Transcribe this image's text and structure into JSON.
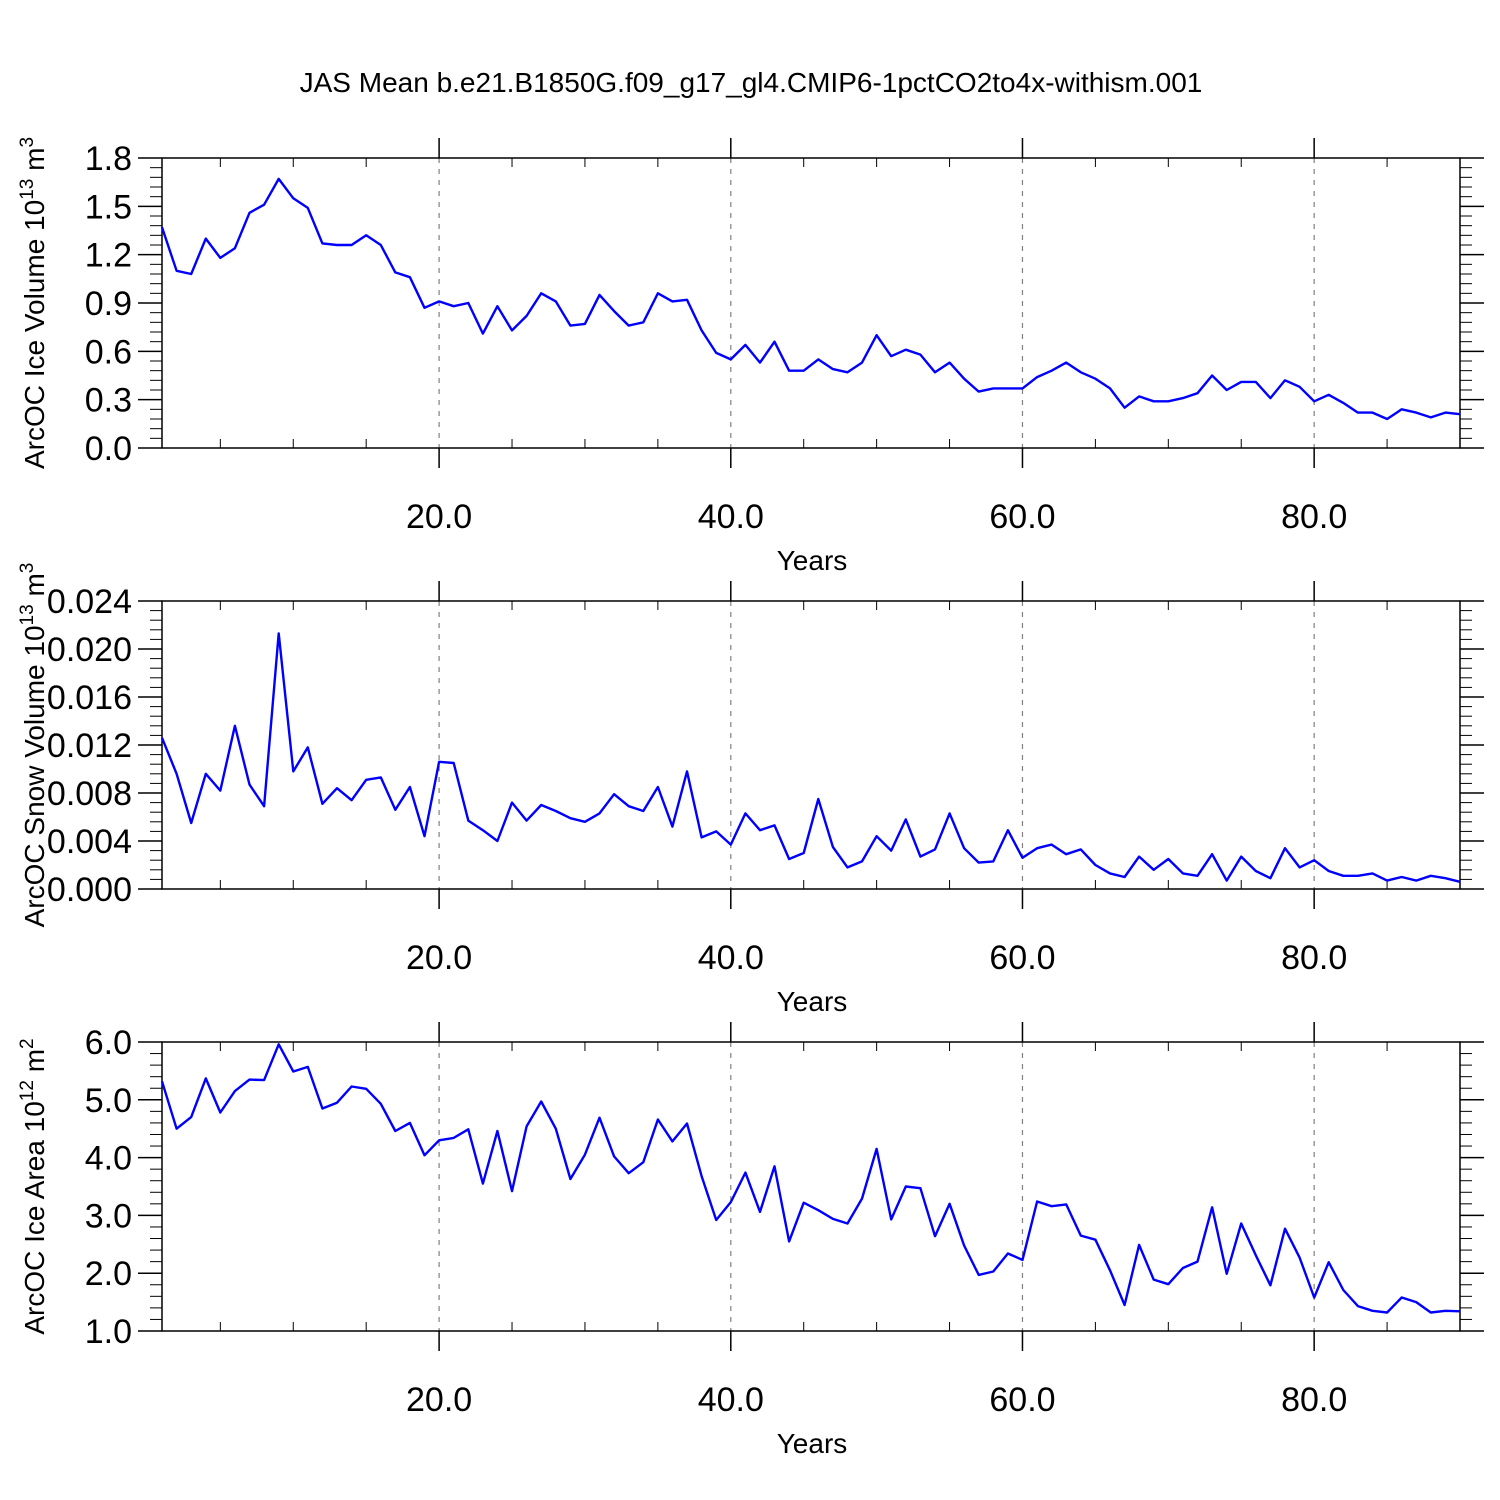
{
  "figure": {
    "title": "JAS Mean b.e21.B1850G.f09_g17_gl4.CMIP6-1pctCO2to4x-withism.001"
  },
  "colors": {
    "line": "#0000ff",
    "axes": "#000000",
    "grid": "#808080"
  },
  "chart_data": [
    {
      "type": "line",
      "xlabel": "Years",
      "ylabel_text": "ArcOC Ice Volume 10",
      "ylabel_exp": "13",
      "ylabel_unit": " m",
      "ylabel_unit_exp": "3",
      "xlim": [
        1,
        90
      ],
      "ylim": [
        0.0,
        1.8
      ],
      "x_ticks": [
        20,
        40,
        60,
        80
      ],
      "x_tick_labels": [
        "20.0",
        "40.0",
        "60.0",
        "80.0"
      ],
      "y_ticks": [
        0.0,
        0.3,
        0.6,
        0.9,
        1.2,
        1.5,
        1.8
      ],
      "y_tick_labels": [
        "0.0",
        "0.3",
        "0.6",
        "0.9",
        "1.2",
        "1.5",
        "1.8"
      ],
      "grid": "x-dashed",
      "x": [
        1,
        2,
        3,
        4,
        5,
        6,
        7,
        8,
        9,
        10,
        11,
        12,
        13,
        14,
        15,
        16,
        17,
        18,
        19,
        20,
        21,
        22,
        23,
        24,
        25,
        26,
        27,
        28,
        29,
        30,
        31,
        32,
        33,
        34,
        35,
        36,
        37,
        38,
        39,
        40,
        41,
        42,
        43,
        44,
        45,
        46,
        47,
        48,
        49,
        50,
        51,
        52,
        53,
        54,
        55,
        56,
        57,
        58,
        59,
        60,
        61,
        62,
        63,
        64,
        65,
        66,
        67,
        68,
        69,
        70,
        71,
        72,
        73,
        74,
        75,
        76,
        77,
        78,
        79,
        80,
        81,
        82,
        83,
        84,
        85,
        86,
        87,
        88,
        89,
        90
      ],
      "values": [
        1.37,
        1.1,
        1.08,
        1.3,
        1.18,
        1.24,
        1.46,
        1.51,
        1.67,
        1.55,
        1.49,
        1.27,
        1.26,
        1.26,
        1.32,
        1.26,
        1.09,
        1.06,
        0.87,
        0.91,
        0.88,
        0.9,
        0.71,
        0.88,
        0.73,
        0.82,
        0.96,
        0.91,
        0.76,
        0.77,
        0.95,
        0.85,
        0.76,
        0.78,
        0.96,
        0.91,
        0.92,
        0.73,
        0.59,
        0.55,
        0.64,
        0.53,
        0.66,
        0.48,
        0.48,
        0.55,
        0.49,
        0.47,
        0.53,
        0.7,
        0.57,
        0.61,
        0.58,
        0.47,
        0.53,
        0.43,
        0.35,
        0.37,
        0.37,
        0.37,
        0.44,
        0.48,
        0.53,
        0.47,
        0.43,
        0.37,
        0.25,
        0.32,
        0.29,
        0.29,
        0.31,
        0.34,
        0.45,
        0.36,
        0.41,
        0.41,
        0.31,
        0.42,
        0.38,
        0.29,
        0.33,
        0.28,
        0.22,
        0.22,
        0.18,
        0.24,
        0.22,
        0.19,
        0.22,
        0.21
      ]
    },
    {
      "type": "line",
      "xlabel": "Years",
      "ylabel_text": "ArcOC Snow Volume 10",
      "ylabel_exp": "13",
      "ylabel_unit": " m",
      "ylabel_unit_exp": "3",
      "xlim": [
        1,
        90
      ],
      "ylim": [
        0.0,
        0.024
      ],
      "x_ticks": [
        20,
        40,
        60,
        80
      ],
      "x_tick_labels": [
        "20.0",
        "40.0",
        "60.0",
        "80.0"
      ],
      "y_ticks": [
        0.0,
        0.004,
        0.008,
        0.012,
        0.016,
        0.02,
        0.024
      ],
      "y_tick_labels": [
        "0.000",
        "0.004",
        "0.008",
        "0.012",
        "0.016",
        "0.020",
        "0.024"
      ],
      "grid": "x-dashed",
      "x": [
        1,
        2,
        3,
        4,
        5,
        6,
        7,
        8,
        9,
        10,
        11,
        12,
        13,
        14,
        15,
        16,
        17,
        18,
        19,
        20,
        21,
        22,
        23,
        24,
        25,
        26,
        27,
        28,
        29,
        30,
        31,
        32,
        33,
        34,
        35,
        36,
        37,
        38,
        39,
        40,
        41,
        42,
        43,
        44,
        45,
        46,
        47,
        48,
        49,
        50,
        51,
        52,
        53,
        54,
        55,
        56,
        57,
        58,
        59,
        60,
        61,
        62,
        63,
        64,
        65,
        66,
        67,
        68,
        69,
        70,
        71,
        72,
        73,
        74,
        75,
        76,
        77,
        78,
        79,
        80,
        81,
        82,
        83,
        84,
        85,
        86,
        87,
        88,
        89,
        90
      ],
      "values": [
        0.0126,
        0.0096,
        0.0055,
        0.0096,
        0.0082,
        0.0136,
        0.0087,
        0.0069,
        0.0213,
        0.0098,
        0.0118,
        0.0071,
        0.0084,
        0.0074,
        0.0091,
        0.0093,
        0.0066,
        0.0085,
        0.0044,
        0.0106,
        0.0105,
        0.0057,
        0.0049,
        0.004,
        0.0072,
        0.0057,
        0.007,
        0.0065,
        0.0059,
        0.0056,
        0.0063,
        0.0079,
        0.0069,
        0.0065,
        0.0085,
        0.0052,
        0.0098,
        0.0043,
        0.0048,
        0.0037,
        0.0063,
        0.0049,
        0.0053,
        0.0025,
        0.003,
        0.0075,
        0.0035,
        0.0018,
        0.0023,
        0.0044,
        0.0032,
        0.0058,
        0.0027,
        0.0033,
        0.0063,
        0.0034,
        0.0022,
        0.0023,
        0.0049,
        0.0026,
        0.0034,
        0.0037,
        0.0029,
        0.0033,
        0.002,
        0.0013,
        0.001,
        0.0027,
        0.0016,
        0.0025,
        0.0013,
        0.0011,
        0.0029,
        0.0007,
        0.0027,
        0.0015,
        0.0009,
        0.0034,
        0.0018,
        0.0024,
        0.0015,
        0.0011,
        0.0011,
        0.0013,
        0.0007,
        0.001,
        0.0007,
        0.0011,
        0.0009,
        0.0006
      ]
    },
    {
      "type": "line",
      "xlabel": "Years",
      "ylabel_text": "ArcOC Ice Area 10",
      "ylabel_exp": "12",
      "ylabel_unit": " m",
      "ylabel_unit_exp": "2",
      "xlim": [
        1,
        90
      ],
      "ylim": [
        1.0,
        6.0
      ],
      "x_ticks": [
        20,
        40,
        60,
        80
      ],
      "x_tick_labels": [
        "20.0",
        "40.0",
        "60.0",
        "80.0"
      ],
      "y_ticks": [
        1.0,
        2.0,
        3.0,
        4.0,
        5.0,
        6.0
      ],
      "y_tick_labels": [
        "1.0",
        "2.0",
        "3.0",
        "4.0",
        "5.0",
        "6.0"
      ],
      "grid": "x-dashed",
      "x": [
        1,
        2,
        3,
        4,
        5,
        6,
        7,
        8,
        9,
        10,
        11,
        12,
        13,
        14,
        15,
        16,
        17,
        18,
        19,
        20,
        21,
        22,
        23,
        24,
        25,
        26,
        27,
        28,
        29,
        30,
        31,
        32,
        33,
        34,
        35,
        36,
        37,
        38,
        39,
        40,
        41,
        42,
        43,
        44,
        45,
        46,
        47,
        48,
        49,
        50,
        51,
        52,
        53,
        54,
        55,
        56,
        57,
        58,
        59,
        60,
        61,
        62,
        63,
        64,
        65,
        66,
        67,
        68,
        69,
        70,
        71,
        72,
        73,
        74,
        75,
        76,
        77,
        78,
        79,
        80,
        81,
        82,
        83,
        84,
        85,
        86,
        87,
        88,
        89,
        90
      ],
      "values": [
        5.32,
        4.5,
        4.7,
        5.37,
        4.78,
        5.15,
        5.35,
        5.34,
        5.96,
        5.49,
        5.57,
        4.85,
        4.95,
        5.23,
        5.19,
        4.93,
        4.46,
        4.6,
        4.04,
        4.3,
        4.34,
        4.49,
        3.55,
        4.46,
        3.42,
        4.54,
        4.97,
        4.5,
        3.63,
        4.05,
        4.69,
        4.02,
        3.73,
        3.92,
        4.66,
        4.28,
        4.59,
        3.68,
        2.92,
        3.23,
        3.74,
        3.06,
        3.85,
        2.55,
        3.22,
        3.09,
        2.94,
        2.86,
        3.29,
        4.15,
        2.93,
        3.5,
        3.47,
        2.64,
        3.2,
        2.48,
        1.97,
        2.03,
        2.34,
        2.23,
        3.24,
        3.16,
        3.19,
        2.65,
        2.58,
        2.05,
        1.45,
        2.49,
        1.89,
        1.81,
        2.09,
        2.2,
        3.14,
        1.99,
        2.86,
        2.31,
        1.79,
        2.77,
        2.27,
        1.58,
        2.19,
        1.71,
        1.43,
        1.35,
        1.32,
        1.58,
        1.5,
        1.32,
        1.35,
        1.34
      ]
    }
  ]
}
